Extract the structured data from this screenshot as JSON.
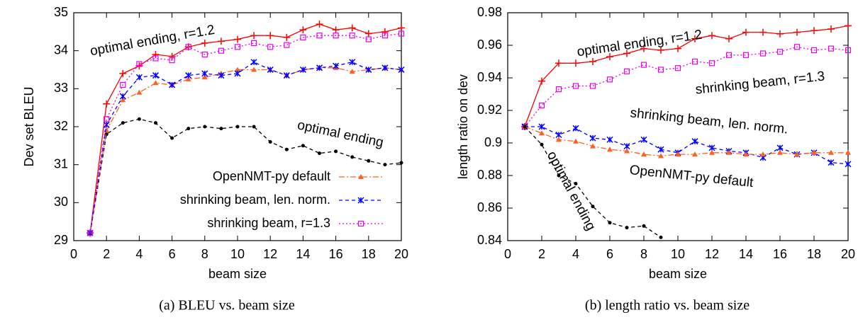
{
  "chart_data": [
    {
      "type": "line",
      "caption": "(a) BLEU vs. beam size",
      "x_label": "beam size",
      "y_label": "Dev set BLEU",
      "x": [
        1,
        2,
        3,
        4,
        5,
        6,
        7,
        8,
        9,
        10,
        11,
        12,
        13,
        14,
        15,
        16,
        17,
        18,
        19,
        20
      ],
      "xlim": [
        0,
        20
      ],
      "xticks": [
        0,
        2,
        4,
        6,
        8,
        10,
        12,
        14,
        16,
        18,
        20
      ],
      "ylim": [
        29,
        35
      ],
      "yticks": [
        29,
        30,
        31,
        32,
        33,
        34,
        35
      ],
      "series": [
        {
          "name": "optimal ending, r=1.2",
          "color": "#ff0000",
          "line_style": "solid",
          "marker": "plus",
          "in_legend": false,
          "values": [
            29.2,
            32.6,
            33.4,
            33.6,
            33.9,
            33.85,
            34.1,
            34.2,
            34.25,
            34.3,
            34.4,
            34.4,
            34.35,
            34.55,
            34.7,
            34.55,
            34.6,
            34.45,
            34.5,
            34.6
          ]
        },
        {
          "name": "optimal ending",
          "color": "#000000",
          "line_style": "dashed",
          "marker": "dot",
          "in_legend": false,
          "values": [
            29.2,
            31.8,
            32.1,
            32.2,
            32.1,
            31.7,
            31.95,
            32.0,
            31.95,
            32.0,
            32.0,
            31.6,
            31.4,
            31.5,
            31.3,
            31.35,
            31.2,
            31.1,
            31.0,
            31.05
          ]
        },
        {
          "name": "OpenNMT-py default",
          "color": "#ff6020",
          "line_style": "dashdot",
          "marker": "triangle",
          "in_legend": true,
          "values": [
            29.2,
            31.9,
            32.7,
            32.9,
            33.15,
            33.1,
            33.25,
            33.3,
            33.4,
            33.5,
            33.5,
            33.5,
            33.35,
            33.5,
            33.55,
            33.55,
            33.45,
            33.5,
            33.55,
            33.5
          ]
        },
        {
          "name": "shrinking beam, len. norm.",
          "color": "#0000ff",
          "line_style": "dashed",
          "marker": "star",
          "in_legend": true,
          "values": [
            29.2,
            32.05,
            32.8,
            33.3,
            33.35,
            33.1,
            33.35,
            33.4,
            33.35,
            33.4,
            33.7,
            33.5,
            33.35,
            33.5,
            33.55,
            33.6,
            33.7,
            33.5,
            33.55,
            33.5
          ]
        },
        {
          "name": "shrinking beam, r=1.3",
          "color": "#ee00ee",
          "line_style": "dotted",
          "marker": "square",
          "in_legend": true,
          "values": [
            29.2,
            32.2,
            33.1,
            33.65,
            33.8,
            33.75,
            34.1,
            33.9,
            34.0,
            34.1,
            34.2,
            34.1,
            34.15,
            34.35,
            34.4,
            34.4,
            34.4,
            34.3,
            34.4,
            34.45
          ]
        }
      ]
    },
    {
      "type": "line",
      "caption": "(b) length ratio vs. beam size",
      "x_label": "beam size",
      "y_label": "length ratio on dev",
      "x": [
        1,
        2,
        3,
        4,
        5,
        6,
        7,
        8,
        9,
        10,
        11,
        12,
        13,
        14,
        15,
        16,
        17,
        18,
        19,
        20
      ],
      "xlim": [
        0,
        20
      ],
      "xticks": [
        0,
        2,
        4,
        6,
        8,
        10,
        12,
        14,
        16,
        18,
        20
      ],
      "ylim": [
        0.84,
        0.98
      ],
      "yticks": [
        0.84,
        0.86,
        0.88,
        0.9,
        0.92,
        0.94,
        0.96,
        0.98
      ],
      "series": [
        {
          "name": "optimal ending, r=1.2",
          "color": "#ff0000",
          "line_style": "solid",
          "marker": "plus",
          "in_legend": false,
          "values": [
            0.91,
            0.938,
            0.949,
            0.949,
            0.95,
            0.953,
            0.955,
            0.958,
            0.957,
            0.958,
            0.964,
            0.966,
            0.964,
            0.968,
            0.968,
            0.967,
            0.968,
            0.969,
            0.97,
            0.972
          ]
        },
        {
          "name": "shrinking beam, r=1.3",
          "color": "#ee00ee",
          "line_style": "dotted",
          "marker": "square",
          "in_legend": false,
          "values": [
            0.91,
            0.923,
            0.933,
            0.935,
            0.935,
            0.939,
            0.944,
            0.948,
            0.945,
            0.946,
            0.95,
            0.949,
            0.954,
            0.954,
            0.955,
            0.956,
            0.959,
            0.957,
            0.958,
            0.957
          ]
        },
        {
          "name": "shrinking beam, len. norm.",
          "color": "#0000ff",
          "line_style": "dashed",
          "marker": "star",
          "in_legend": false,
          "values": [
            0.91,
            0.91,
            0.905,
            0.909,
            0.903,
            0.902,
            0.898,
            0.902,
            0.896,
            0.894,
            0.901,
            0.897,
            0.895,
            0.894,
            0.891,
            0.897,
            0.893,
            0.894,
            0.888,
            0.887
          ]
        },
        {
          "name": "OpenNMT-py default",
          "color": "#ff6020",
          "line_style": "dashdot",
          "marker": "triangle",
          "in_legend": false,
          "values": [
            0.91,
            0.906,
            0.902,
            0.901,
            0.898,
            0.896,
            0.895,
            0.893,
            0.892,
            0.893,
            0.893,
            0.894,
            0.894,
            0.893,
            0.893,
            0.894,
            0.893,
            0.894,
            0.894,
            0.894
          ]
        },
        {
          "name": "optimal ending",
          "color": "#000000",
          "line_style": "dashed",
          "marker": "dot",
          "in_legend": false,
          "values": [
            0.91,
            0.899,
            0.88,
            0.875,
            0.861,
            0.851,
            0.848,
            0.849,
            0.842,
            null,
            null,
            null,
            null,
            null,
            null,
            null,
            null,
            null,
            null,
            null
          ]
        }
      ]
    }
  ]
}
